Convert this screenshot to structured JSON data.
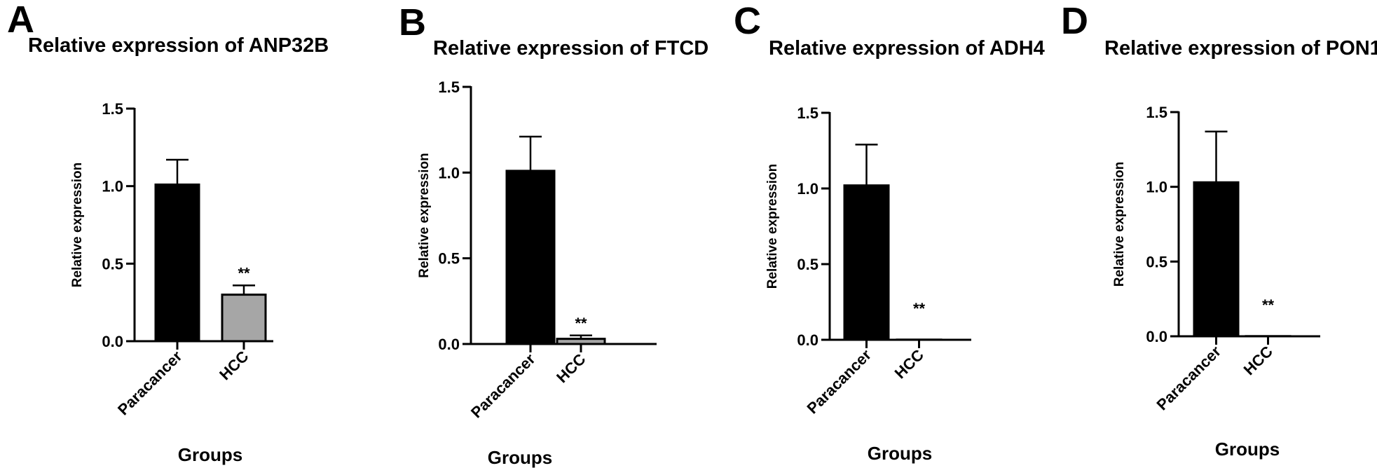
{
  "chart_data": [
    {
      "panel": "A",
      "type": "bar",
      "title": "Relative expression of ANP32B",
      "xlabel": "Groups",
      "ylabel": "Relative expression",
      "ylim": [
        0,
        1.5
      ],
      "yticks": [
        "0.0",
        "0.5",
        "1.0",
        "1.5"
      ],
      "categories": [
        "Paracancer",
        "HCC"
      ],
      "values": [
        1.01,
        0.3
      ],
      "errors": [
        0.16,
        0.06
      ],
      "bar_colors": [
        "#000000",
        "#a6a6a6"
      ],
      "annotations": [
        "",
        "**"
      ]
    },
    {
      "panel": "B",
      "type": "bar",
      "title": "Relative expression of FTCD",
      "xlabel": "Groups",
      "ylabel": "Relative expression",
      "ylim": [
        0,
        1.5
      ],
      "yticks": [
        "0.0",
        "0.5",
        "1.0",
        "1.5"
      ],
      "categories": [
        "Paracancer",
        "HCC"
      ],
      "values": [
        1.01,
        0.03
      ],
      "errors": [
        0.2,
        0.02
      ],
      "bar_colors": [
        "#000000",
        "#a6a6a6"
      ],
      "annotations": [
        "",
        "**"
      ]
    },
    {
      "panel": "C",
      "type": "bar",
      "title": "Relative expression of ADH4",
      "xlabel": "Groups",
      "ylabel": "Relative expression",
      "ylim": [
        0,
        1.5
      ],
      "yticks": [
        "0.0",
        "0.5",
        "1.0",
        "1.5"
      ],
      "categories": [
        "Paracancer",
        "HCC"
      ],
      "values": [
        1.02,
        0.001
      ],
      "errors": [
        0.27,
        0
      ],
      "bar_colors": [
        "#000000",
        "#a6a6a6"
      ],
      "annotations": [
        "",
        "**"
      ]
    },
    {
      "panel": "D",
      "type": "bar",
      "title": "Relative expression of PON1",
      "xlabel": "Groups",
      "ylabel": "Relative expression",
      "ylim": [
        0,
        1.5
      ],
      "yticks": [
        "0.0",
        "0.5",
        "1.0",
        "1.5"
      ],
      "categories": [
        "Paracancer",
        "HCC"
      ],
      "values": [
        1.03,
        0.001
      ],
      "errors": [
        0.34,
        0
      ],
      "bar_colors": [
        "#000000",
        "#a6a6a6"
      ],
      "annotations": [
        "",
        "**"
      ]
    }
  ]
}
